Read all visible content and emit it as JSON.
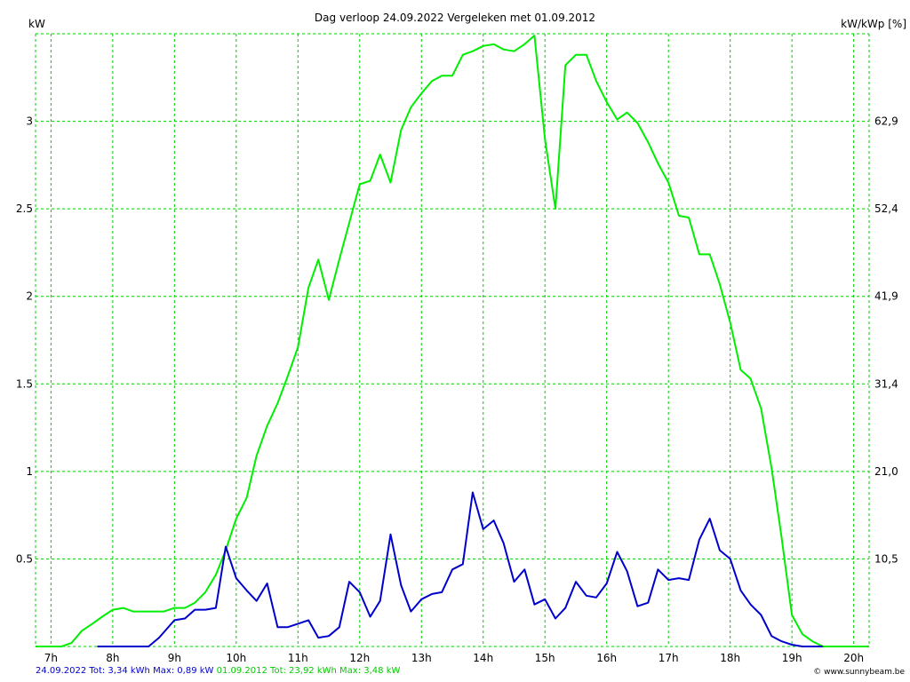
{
  "chart_data": {
    "type": "line",
    "title": "Dag  verloop 24.09.2022   Vergeleken met 01.09.2012",
    "ylabel_left": "kW",
    "ylabel_right": "kW/kWp [%]",
    "xlim": [
      6.75,
      20.25
    ],
    "ylim": [
      0,
      3.5
    ],
    "x_ticks": [
      7,
      8,
      9,
      10,
      11,
      12,
      13,
      14,
      15,
      16,
      17,
      18,
      19,
      20
    ],
    "x_tick_labels": [
      "7h",
      "8h",
      "9h",
      "10h",
      "11h",
      "12h",
      "13h",
      "14h",
      "15h",
      "16h",
      "17h",
      "18h",
      "19h",
      "20h"
    ],
    "y_ticks": [
      0.5,
      1,
      1.5,
      2,
      2.5,
      3
    ],
    "y_tick_labels": [
      "0.5",
      "1",
      "1.5",
      "2",
      "2.5",
      "3"
    ],
    "y2_tick_labels": [
      "10,5",
      "21,0",
      "31,4",
      "41,9",
      "52,4",
      "62,9"
    ],
    "grid": true,
    "colors": {
      "grid": "#00cc00",
      "series_2022": "#0000cc",
      "series_2012": "#00ee00"
    },
    "series": [
      {
        "name": "24.09.2022",
        "color": "#0000cc",
        "points": [
          [
            7.75,
            0
          ],
          [
            8.58,
            0
          ],
          [
            8.75,
            0.05
          ],
          [
            9.0,
            0.15
          ],
          [
            9.17,
            0.16
          ],
          [
            9.33,
            0.21
          ],
          [
            9.5,
            0.21
          ],
          [
            9.67,
            0.22
          ],
          [
            9.83,
            0.57
          ],
          [
            10.0,
            0.39
          ],
          [
            10.17,
            0.32
          ],
          [
            10.33,
            0.26
          ],
          [
            10.5,
            0.36
          ],
          [
            10.67,
            0.11
          ],
          [
            10.83,
            0.11
          ],
          [
            11.0,
            0.13
          ],
          [
            11.17,
            0.15
          ],
          [
            11.33,
            0.05
          ],
          [
            11.5,
            0.06
          ],
          [
            11.67,
            0.11
          ],
          [
            11.83,
            0.37
          ],
          [
            12.0,
            0.31
          ],
          [
            12.17,
            0.17
          ],
          [
            12.33,
            0.26
          ],
          [
            12.5,
            0.64
          ],
          [
            12.67,
            0.35
          ],
          [
            12.83,
            0.2
          ],
          [
            13.0,
            0.27
          ],
          [
            13.17,
            0.3
          ],
          [
            13.33,
            0.31
          ],
          [
            13.5,
            0.44
          ],
          [
            13.67,
            0.47
          ],
          [
            13.83,
            0.88
          ],
          [
            14.0,
            0.67
          ],
          [
            14.17,
            0.72
          ],
          [
            14.33,
            0.59
          ],
          [
            14.5,
            0.37
          ],
          [
            14.67,
            0.44
          ],
          [
            14.83,
            0.24
          ],
          [
            15.0,
            0.27
          ],
          [
            15.17,
            0.16
          ],
          [
            15.33,
            0.22
          ],
          [
            15.5,
            0.37
          ],
          [
            15.67,
            0.29
          ],
          [
            15.83,
            0.28
          ],
          [
            16.0,
            0.36
          ],
          [
            16.17,
            0.54
          ],
          [
            16.33,
            0.43
          ],
          [
            16.5,
            0.23
          ],
          [
            16.67,
            0.25
          ],
          [
            16.83,
            0.44
          ],
          [
            17.0,
            0.38
          ],
          [
            17.17,
            0.39
          ],
          [
            17.33,
            0.38
          ],
          [
            17.5,
            0.61
          ],
          [
            17.67,
            0.73
          ],
          [
            17.83,
            0.55
          ],
          [
            18.0,
            0.5
          ],
          [
            18.17,
            0.32
          ],
          [
            18.33,
            0.24
          ],
          [
            18.5,
            0.18
          ],
          [
            18.67,
            0.06
          ],
          [
            18.83,
            0.03
          ],
          [
            19.0,
            0.01
          ],
          [
            19.17,
            0
          ],
          [
            19.5,
            0
          ]
        ]
      },
      {
        "name": "01.09.2012",
        "color": "#00ee00",
        "points": [
          [
            6.75,
            0
          ],
          [
            7.17,
            0
          ],
          [
            7.33,
            0.02
          ],
          [
            7.5,
            0.09
          ],
          [
            7.67,
            0.13
          ],
          [
            7.83,
            0.17
          ],
          [
            8.0,
            0.21
          ],
          [
            8.17,
            0.22
          ],
          [
            8.33,
            0.2
          ],
          [
            8.5,
            0.2
          ],
          [
            8.67,
            0.2
          ],
          [
            8.83,
            0.2
          ],
          [
            9.0,
            0.22
          ],
          [
            9.17,
            0.22
          ],
          [
            9.33,
            0.25
          ],
          [
            9.5,
            0.31
          ],
          [
            9.67,
            0.41
          ],
          [
            9.83,
            0.55
          ],
          [
            10.0,
            0.73
          ],
          [
            10.17,
            0.85
          ],
          [
            10.33,
            1.09
          ],
          [
            10.5,
            1.26
          ],
          [
            10.67,
            1.39
          ],
          [
            10.83,
            1.54
          ],
          [
            11.0,
            1.71
          ],
          [
            11.17,
            2.05
          ],
          [
            11.33,
            2.21
          ],
          [
            11.5,
            1.98
          ],
          [
            11.67,
            2.21
          ],
          [
            11.83,
            2.42
          ],
          [
            12.0,
            2.64
          ],
          [
            12.17,
            2.66
          ],
          [
            12.33,
            2.81
          ],
          [
            12.5,
            2.65
          ],
          [
            12.67,
            2.95
          ],
          [
            12.83,
            3.08
          ],
          [
            13.0,
            3.16
          ],
          [
            13.17,
            3.23
          ],
          [
            13.33,
            3.26
          ],
          [
            13.5,
            3.26
          ],
          [
            13.67,
            3.38
          ],
          [
            13.83,
            3.4
          ],
          [
            14.0,
            3.43
          ],
          [
            14.17,
            3.44
          ],
          [
            14.33,
            3.41
          ],
          [
            14.5,
            3.4
          ],
          [
            14.67,
            3.44
          ],
          [
            14.83,
            3.49
          ],
          [
            15.0,
            2.9
          ],
          [
            15.17,
            2.5
          ],
          [
            15.33,
            3.32
          ],
          [
            15.5,
            3.38
          ],
          [
            15.67,
            3.38
          ],
          [
            15.83,
            3.23
          ],
          [
            16.0,
            3.11
          ],
          [
            16.17,
            3.01
          ],
          [
            16.33,
            3.05
          ],
          [
            16.5,
            2.99
          ],
          [
            16.67,
            2.88
          ],
          [
            16.83,
            2.76
          ],
          [
            17.0,
            2.65
          ],
          [
            17.17,
            2.46
          ],
          [
            17.33,
            2.45
          ],
          [
            17.5,
            2.24
          ],
          [
            17.67,
            2.24
          ],
          [
            17.83,
            2.07
          ],
          [
            18.0,
            1.85
          ],
          [
            18.17,
            1.58
          ],
          [
            18.33,
            1.53
          ],
          [
            18.5,
            1.36
          ],
          [
            18.67,
            1.02
          ],
          [
            18.83,
            0.63
          ],
          [
            19.0,
            0.18
          ],
          [
            19.17,
            0.07
          ],
          [
            19.33,
            0.03
          ],
          [
            19.5,
            0
          ],
          [
            20.25,
            0
          ]
        ]
      }
    ]
  },
  "footer": {
    "blue_text": "24.09.2022 Tot: 3,34 kWh Max: 0,89 kW",
    "green_text": "01.09.2012 Tot: 23,92 kWh Max: 3,48 kW",
    "credit": "© www.sunnybeam.be"
  }
}
